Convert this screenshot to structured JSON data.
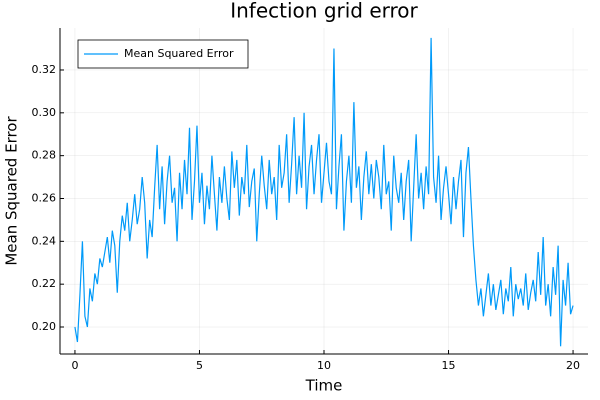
{
  "chart_data": {
    "type": "line",
    "title": "Infection grid error",
    "xlabel": "Time",
    "ylabel": "Mean Squared Error",
    "x": [
      0,
      0.1,
      0.2,
      0.3,
      0.4,
      0.5,
      0.6,
      0.7,
      0.8,
      0.9,
      1,
      1.1,
      1.2,
      1.3,
      1.4,
      1.5,
      1.6,
      1.7,
      1.8,
      1.9,
      2,
      2.1,
      2.2,
      2.3,
      2.4,
      2.5,
      2.6,
      2.7,
      2.8,
      2.9,
      3,
      3.1,
      3.2,
      3.3,
      3.4,
      3.5,
      3.6,
      3.7,
      3.8,
      3.9,
      4,
      4.1,
      4.2,
      4.3,
      4.4,
      4.5,
      4.6,
      4.7,
      4.8,
      4.9,
      5,
      5.1,
      5.2,
      5.3,
      5.4,
      5.5,
      5.6,
      5.7,
      5.8,
      5.9,
      6,
      6.1,
      6.2,
      6.3,
      6.4,
      6.5,
      6.6,
      6.7,
      6.8,
      6.9,
      7,
      7.1,
      7.2,
      7.3,
      7.4,
      7.5,
      7.6,
      7.7,
      7.8,
      7.9,
      8,
      8.1,
      8.2,
      8.3,
      8.4,
      8.5,
      8.6,
      8.7,
      8.8,
      8.9,
      9,
      9.1,
      9.2,
      9.3,
      9.4,
      9.5,
      9.6,
      9.7,
      9.8,
      9.9,
      10,
      10.1,
      10.2,
      10.3,
      10.4,
      10.5,
      10.6,
      10.7,
      10.8,
      10.9,
      11,
      11.1,
      11.2,
      11.3,
      11.4,
      11.5,
      11.6,
      11.7,
      11.8,
      11.9,
      12,
      12.1,
      12.2,
      12.3,
      12.4,
      12.5,
      12.6,
      12.7,
      12.8,
      12.9,
      13,
      13.1,
      13.2,
      13.3,
      13.4,
      13.5,
      13.6,
      13.7,
      13.8,
      13.9,
      14,
      14.1,
      14.2,
      14.3,
      14.4,
      14.5,
      14.6,
      14.7,
      14.8,
      14.9,
      15,
      15.1,
      15.2,
      15.3,
      15.4,
      15.5,
      15.6,
      15.7,
      15.8,
      15.9,
      16,
      16.1,
      16.2,
      16.3,
      16.4,
      16.5,
      16.6,
      16.7,
      16.8,
      16.9,
      17,
      17.1,
      17.2,
      17.3,
      17.4,
      17.5,
      17.6,
      17.7,
      17.8,
      17.9,
      18,
      18.1,
      18.2,
      18.3,
      18.4,
      18.5,
      18.6,
      18.7,
      18.8,
      18.9,
      19,
      19.1,
      19.2,
      19.3,
      19.4,
      19.5,
      19.6,
      19.7,
      19.8,
      19.9,
      20
    ],
    "series": [
      {
        "name": "Mean Squared Error",
        "color": "#009af9",
        "values": [
          0.2,
          0.193,
          0.215,
          0.24,
          0.205,
          0.2,
          0.218,
          0.212,
          0.225,
          0.22,
          0.232,
          0.228,
          0.235,
          0.242,
          0.23,
          0.245,
          0.238,
          0.216,
          0.24,
          0.252,
          0.245,
          0.258,
          0.24,
          0.25,
          0.262,
          0.248,
          0.255,
          0.27,
          0.258,
          0.232,
          0.25,
          0.242,
          0.265,
          0.285,
          0.255,
          0.275,
          0.248,
          0.268,
          0.28,
          0.258,
          0.265,
          0.24,
          0.272,
          0.255,
          0.278,
          0.262,
          0.293,
          0.25,
          0.268,
          0.294,
          0.258,
          0.272,
          0.248,
          0.266,
          0.255,
          0.28,
          0.262,
          0.245,
          0.27,
          0.258,
          0.275,
          0.26,
          0.25,
          0.282,
          0.265,
          0.278,
          0.252,
          0.27,
          0.262,
          0.285,
          0.256,
          0.268,
          0.274,
          0.24,
          0.262,
          0.28,
          0.266,
          0.255,
          0.278,
          0.262,
          0.27,
          0.25,
          0.285,
          0.265,
          0.272,
          0.29,
          0.258,
          0.276,
          0.298,
          0.262,
          0.28,
          0.265,
          0.3,
          0.255,
          0.275,
          0.285,
          0.262,
          0.278,
          0.29,
          0.258,
          0.272,
          0.286,
          0.268,
          0.262,
          0.33,
          0.255,
          0.275,
          0.29,
          0.245,
          0.268,
          0.28,
          0.258,
          0.305,
          0.265,
          0.275,
          0.25,
          0.27,
          0.282,
          0.262,
          0.276,
          0.26,
          0.278,
          0.27,
          0.255,
          0.285,
          0.262,
          0.268,
          0.245,
          0.28,
          0.265,
          0.258,
          0.272,
          0.25,
          0.268,
          0.278,
          0.24,
          0.265,
          0.29,
          0.26,
          0.272,
          0.255,
          0.275,
          0.262,
          0.335,
          0.27,
          0.258,
          0.28,
          0.25,
          0.265,
          0.275,
          0.262,
          0.248,
          0.27,
          0.255,
          0.268,
          0.278,
          0.242,
          0.272,
          0.284,
          0.26,
          0.238,
          0.222,
          0.21,
          0.218,
          0.205,
          0.215,
          0.225,
          0.21,
          0.22,
          0.208,
          0.215,
          0.222,
          0.206,
          0.218,
          0.212,
          0.228,
          0.205,
          0.22,
          0.213,
          0.218,
          0.21,
          0.225,
          0.208,
          0.216,
          0.222,
          0.212,
          0.235,
          0.215,
          0.242,
          0.21,
          0.22,
          0.205,
          0.228,
          0.215,
          0.238,
          0.191,
          0.222,
          0.21,
          0.23,
          0.206,
          0.21
        ]
      }
    ],
    "xlim": [
      -0.6,
      20.6
    ],
    "xticks": [
      0,
      5,
      10,
      15,
      20
    ],
    "ylim": [
      0.1874,
      0.3396
    ],
    "yticks": [
      {
        "value": 0.2,
        "label": "0.20"
      },
      0.22,
      0.24,
      0.26,
      0.28,
      {
        "value": 0.3,
        "label": "0.30"
      },
      0.32
    ],
    "grid": true,
    "legend": "top-left"
  }
}
